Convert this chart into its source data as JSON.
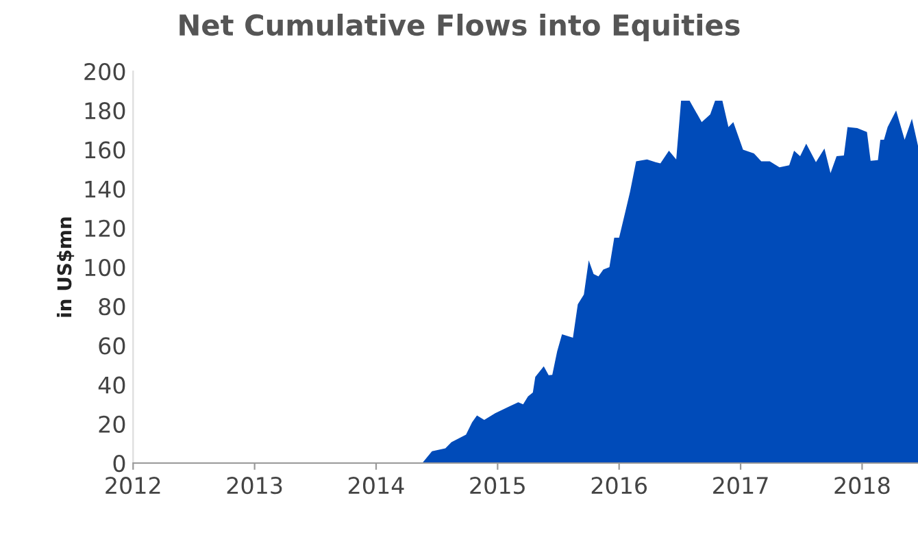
{
  "chart_data": {
    "type": "area",
    "title": "Net Cumulative Flows into Equities",
    "ylabel": "in US$mn",
    "xlim": [
      2012,
      2018.46
    ],
    "xticks": [
      2012,
      2013,
      2014,
      2015,
      2016,
      2017,
      2018
    ],
    "ylim": [
      0,
      200
    ],
    "yticks": [
      0,
      20,
      40,
      60,
      80,
      100,
      120,
      140,
      160,
      180,
      200
    ],
    "grid": false,
    "legend": false,
    "series": [
      {
        "color": "#004bb9",
        "x": [
          2014.31,
          2014.38,
          2014.46,
          2014.57,
          2014.62,
          2014.74,
          2014.79,
          2014.83,
          2014.89,
          2014.98,
          2015.1,
          2015.17,
          2015.21,
          2015.25,
          2015.29,
          2015.31,
          2015.38,
          2015.42,
          2015.45,
          2015.49,
          2015.53,
          2015.62,
          2015.66,
          2015.71,
          2015.75,
          2015.79,
          2015.83,
          2015.87,
          2015.92,
          2015.96,
          2016.0,
          2016.05,
          2016.09,
          2016.14,
          2016.23,
          2016.3,
          2016.34,
          2016.41,
          2016.47,
          2016.51,
          2016.58,
          2016.68,
          2016.75,
          2016.79,
          2016.85,
          2016.9,
          2016.94,
          2017.02,
          2017.11,
          2017.17,
          2017.24,
          2017.32,
          2017.4,
          2017.44,
          2017.49,
          2017.54,
          2017.62,
          2017.69,
          2017.74,
          2017.79,
          2017.85,
          2017.88,
          2017.96,
          2018.04,
          2018.07,
          2018.13,
          2018.15,
          2018.18,
          2018.21,
          2018.28,
          2018.35,
          2018.41,
          2018.46
        ],
        "values": [
          0,
          0,
          6,
          7.5,
          10.7,
          14.5,
          20.8,
          24.3,
          22,
          25.4,
          29,
          31,
          30,
          34,
          36,
          44,
          49.4,
          44.8,
          45,
          57,
          65.7,
          64,
          81,
          86,
          103.5,
          96.5,
          95.3,
          98.8,
          100,
          115,
          115,
          128,
          138.5,
          154,
          155,
          153.6,
          153,
          159.4,
          155,
          185,
          185,
          174,
          178,
          185,
          185,
          171.5,
          174,
          160,
          158,
          154,
          154,
          151,
          152,
          159.4,
          156.6,
          163,
          153.6,
          160.6,
          148,
          156.6,
          157,
          171.5,
          171,
          169,
          154.3,
          154.6,
          165,
          165,
          171.5,
          180,
          165,
          175.8,
          162
        ]
      }
    ]
  }
}
